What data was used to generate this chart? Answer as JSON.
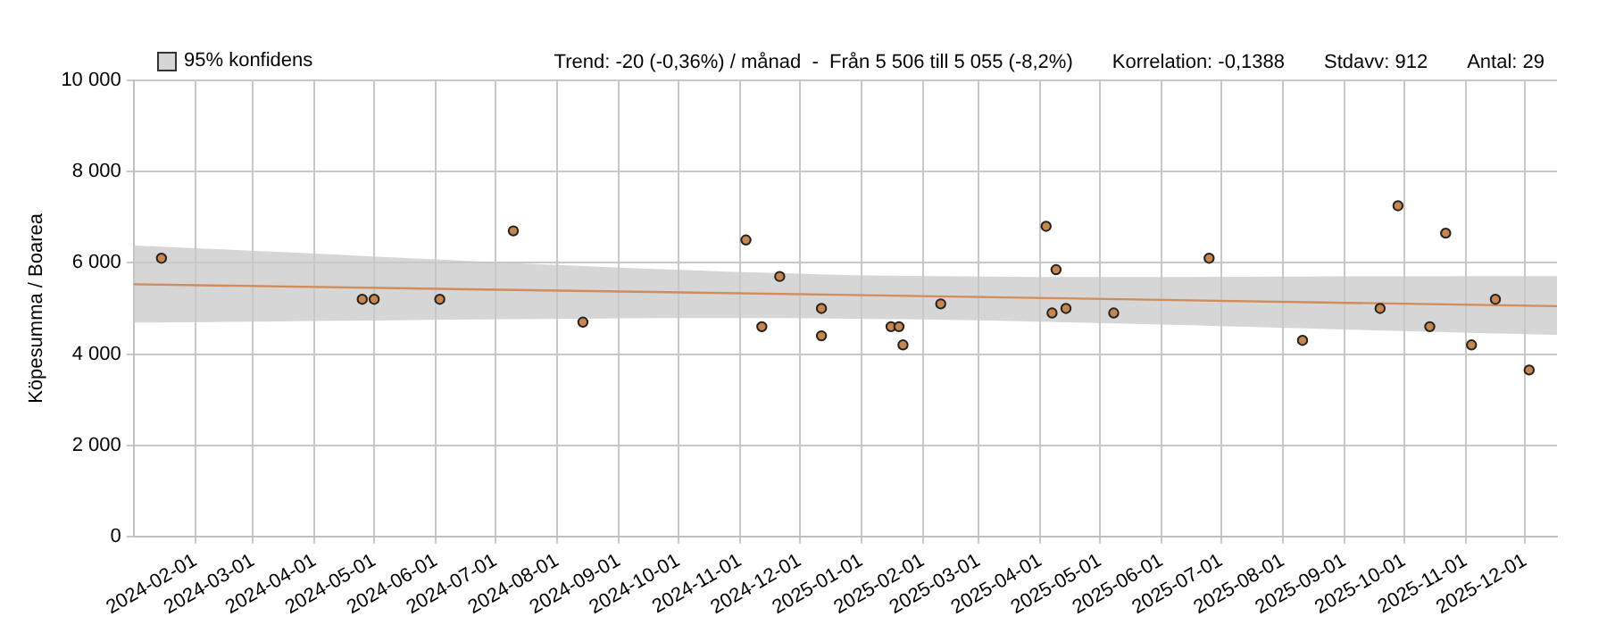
{
  "chart_data": {
    "type": "scatter",
    "ylabel": "Köpesumma / Boarea",
    "annotations": [
      "Trend: -20 (-0,36%) / månad  -  Från 5 506 till 5 055 (-8,2%)",
      "Korrelation: -0,1388",
      "Stdavv: 912",
      "Antal: 29"
    ],
    "legend": "top left",
    "grid": true,
    "xlim": [
      "2024-01-01",
      "2025-12-17"
    ],
    "xticks": [
      "2024-02-01",
      "2024-03-01",
      "2024-04-01",
      "2024-05-01",
      "2024-06-01",
      "2024-07-01",
      "2024-08-01",
      "2024-09-01",
      "2024-10-01",
      "2024-11-01",
      "2024-12-01",
      "2025-01-01",
      "2025-02-01",
      "2025-03-01",
      "2025-04-01",
      "2025-05-01",
      "2025-06-01",
      "2025-07-01",
      "2025-08-01",
      "2025-09-01",
      "2025-10-01",
      "2025-11-01",
      "2025-12-01"
    ],
    "ylim": [
      0,
      10000
    ],
    "yticks": [
      {
        "value": 0,
        "label": "0"
      },
      {
        "value": 2000,
        "label": "2 000"
      },
      {
        "value": 4000,
        "label": "4 000"
      },
      {
        "value": 6000,
        "label": "6 000"
      },
      {
        "value": 8000,
        "label": "8 000"
      },
      {
        "value": 10000,
        "label": "10 000"
      }
    ],
    "series": [
      {
        "type": "line",
        "name": "95% konfidens",
        "color": "#d08c5a",
        "marker": "none",
        "x": [
          "2024-01-01",
          "2024-12-20",
          "2025-12-17"
        ],
        "values": [
          5530,
          5300,
          5050
        ],
        "lower": [
          4690,
          4780,
          4420
        ],
        "upper": [
          6380,
          5740,
          5710
        ]
      },
      {
        "type": "scatter",
        "color": "#c8864a",
        "marker": "circle",
        "x": [
          "2024-01-15",
          "2024-04-25",
          "2024-05-01",
          "2024-06-03",
          "2024-07-10",
          "2024-08-14",
          "2024-11-04",
          "2024-11-12",
          "2024-11-21",
          "2024-12-12",
          "2024-12-12",
          "2025-01-16",
          "2025-01-20",
          "2025-01-22",
          "2025-02-10",
          "2025-04-04",
          "2025-04-09",
          "2025-04-07",
          "2025-04-14",
          "2025-05-08",
          "2025-06-25",
          "2025-08-11",
          "2025-09-19",
          "2025-09-28",
          "2025-10-14",
          "2025-10-22",
          "2025-11-04",
          "2025-11-16",
          "2025-12-03"
        ],
        "values": [
          6100,
          5200,
          5200,
          5200,
          6700,
          4700,
          6500,
          4600,
          5700,
          5000,
          4400,
          4600,
          4600,
          4200,
          5100,
          6800,
          5850,
          4900,
          5000,
          4900,
          6100,
          4300,
          5000,
          7250,
          4600,
          6650,
          4200,
          5200,
          3650
        ]
      }
    ]
  }
}
